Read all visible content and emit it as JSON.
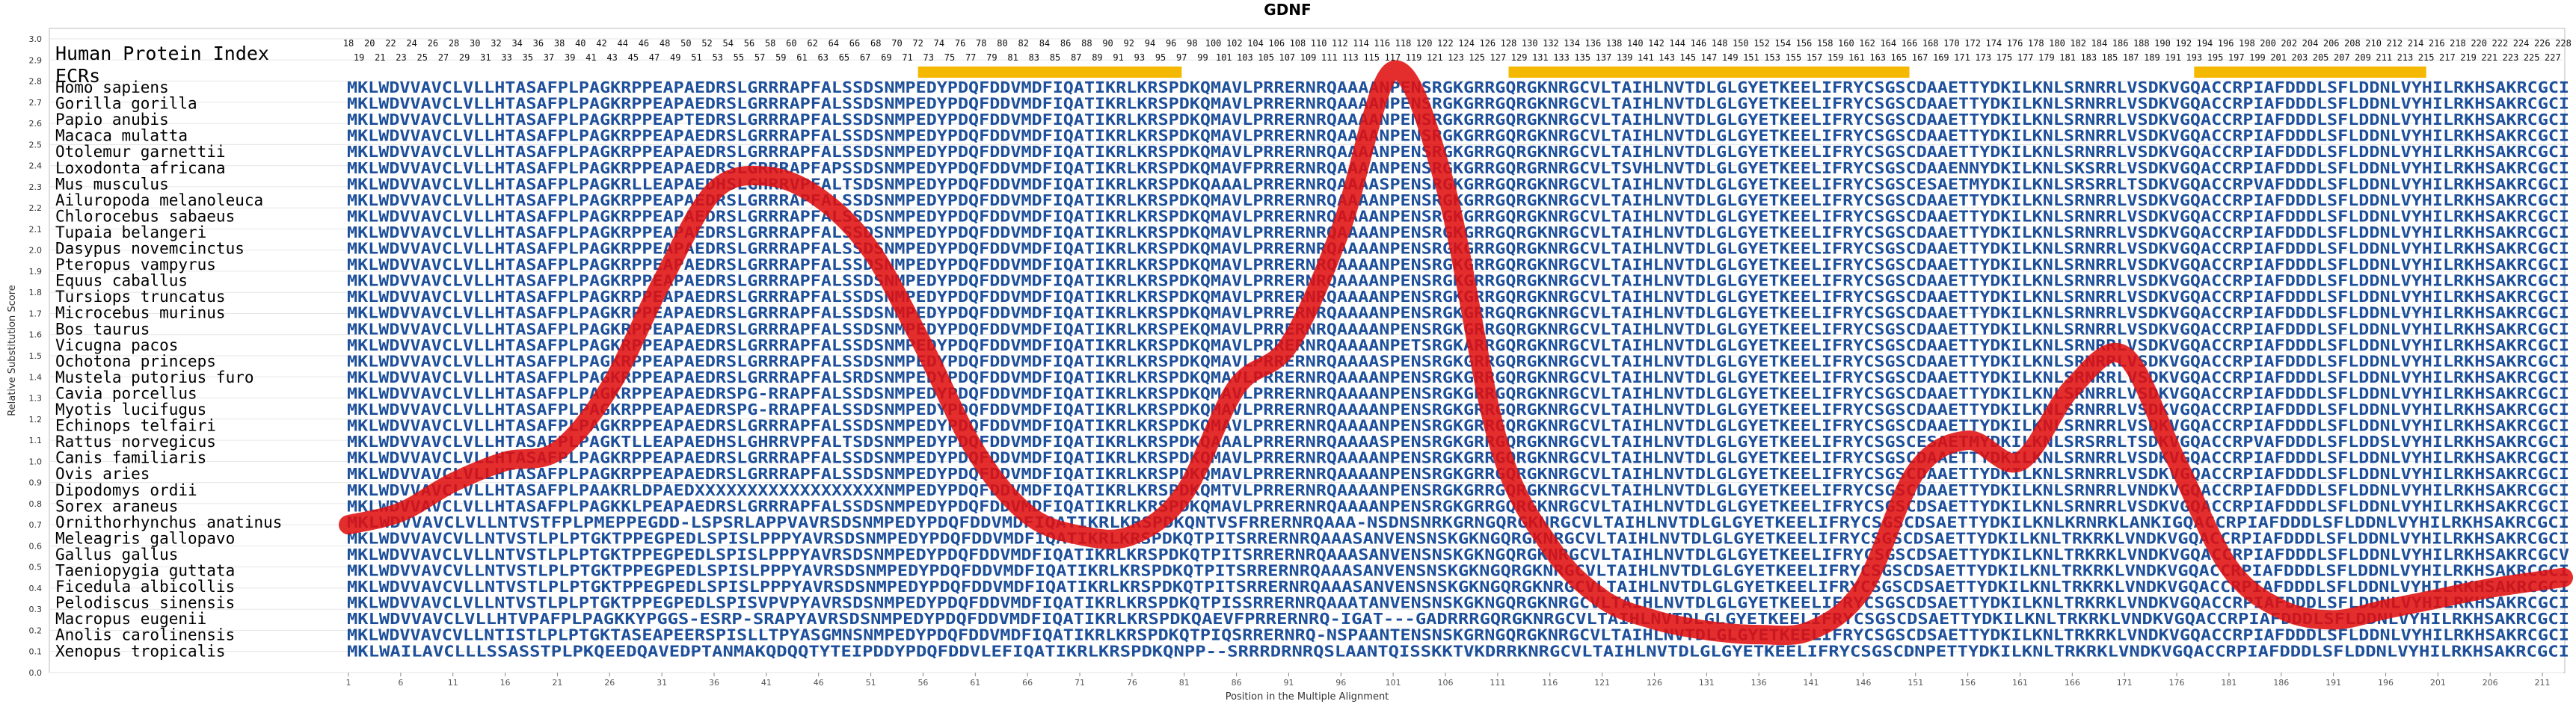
{
  "chart_data": {
    "type": "line",
    "title": "GDNF",
    "xlabel": "Position in the Multiple Alignment",
    "ylabel": "Relative Substitution Score",
    "xlim": [
      1,
      213
    ],
    "ylim": [
      0,
      3.0
    ],
    "yticks": [
      0.0,
      0.1,
      0.2,
      0.3,
      0.4,
      0.5,
      0.6,
      0.7,
      0.8,
      0.9,
      1.0,
      1.1,
      1.2,
      1.3,
      1.4,
      1.5,
      1.6,
      1.7,
      1.8,
      1.9,
      2.0,
      2.1,
      2.2,
      2.3,
      2.4,
      2.5,
      2.6,
      2.7,
      2.8,
      2.9,
      3.0
    ],
    "xticks": [
      1,
      6,
      11,
      16,
      21,
      26,
      31,
      36,
      41,
      46,
      51,
      56,
      61,
      66,
      71,
      76,
      81,
      86,
      91,
      96,
      101,
      106,
      111,
      116,
      121,
      126,
      131,
      136,
      141,
      146,
      151,
      156,
      161,
      166,
      171,
      176,
      181,
      186,
      191,
      196,
      201,
      206,
      211
    ],
    "grid": true,
    "series": [
      {
        "color": "#e01010",
        "x": [
          1,
          6,
          11,
          16,
          21,
          26,
          31,
          36,
          41,
          46,
          51,
          56,
          61,
          66,
          71,
          76,
          81,
          86,
          91,
          96,
          101,
          106,
          111,
          116,
          121,
          126,
          131,
          136,
          141,
          146,
          151,
          156,
          161,
          166,
          171,
          176,
          181,
          186,
          191,
          196,
          201,
          206,
          213
        ],
        "y": [
          0.7,
          0.76,
          0.9,
          1.0,
          1.05,
          1.35,
          1.85,
          2.28,
          2.35,
          2.25,
          2.0,
          1.55,
          1.05,
          0.75,
          0.65,
          0.65,
          0.85,
          1.35,
          1.55,
          2.1,
          2.85,
          2.3,
          1.1,
          0.6,
          0.35,
          0.25,
          0.2,
          0.18,
          0.2,
          0.4,
          0.95,
          1.1,
          1.0,
          1.35,
          1.5,
          1.0,
          0.5,
          0.3,
          0.25,
          0.3,
          0.35,
          0.4,
          0.45
        ]
      }
    ],
    "human_index_row1": [
      "18",
      "20",
      "22",
      "24",
      "26",
      "28",
      "30",
      "32",
      "34",
      "36",
      "38",
      "40",
      "42",
      "44",
      "46",
      "48",
      "50",
      "52",
      "54",
      "56",
      "58",
      "60",
      "62",
      "64",
      "66",
      "68",
      "70",
      "72",
      "74",
      "76",
      "78",
      "80",
      "82",
      "84",
      "86",
      "88",
      "90",
      "92",
      "94",
      "96",
      "98",
      "100",
      "102",
      "104",
      "106",
      "108",
      "110",
      "112",
      "114",
      "116",
      "118",
      "120",
      "122",
      "124",
      "126",
      "128",
      "130",
      "132",
      "134",
      "136",
      "138",
      "140",
      "142",
      "144",
      "146",
      "148",
      "150",
      "152",
      "154",
      "156",
      "158",
      "160",
      "162",
      "164",
      "166",
      "168",
      "170",
      "172",
      "174",
      "176",
      "178",
      "180",
      "182",
      "184",
      "186",
      "188",
      "190",
      "192",
      "194",
      "196",
      "198",
      "200",
      "202",
      "204",
      "206",
      "208",
      "210",
      "212",
      "214",
      "216",
      "218",
      "220",
      "222",
      "224",
      "226",
      "228"
    ],
    "human_index_row2": [
      "19",
      "21",
      "23",
      "25",
      "27",
      "29",
      "31",
      "33",
      "35",
      "37",
      "39",
      "41",
      "43",
      "45",
      "47",
      "49",
      "51",
      "53",
      "55",
      "57",
      "59",
      "61",
      "63",
      "65",
      "67",
      "69",
      "71",
      "73",
      "75",
      "77",
      "79",
      "81",
      "83",
      "85",
      "87",
      "89",
      "91",
      "93",
      "95",
      "97",
      "99",
      "101",
      "103",
      "105",
      "107",
      "109",
      "111",
      "113",
      "115",
      "117",
      "119",
      "121",
      "123",
      "125",
      "127",
      "129",
      "131",
      "133",
      "135",
      "137",
      "139",
      "141",
      "143",
      "145",
      "147",
      "149",
      "151",
      "153",
      "155",
      "157",
      "159",
      "161",
      "163",
      "165",
      "167",
      "169",
      "171",
      "173",
      "175",
      "177",
      "179",
      "181",
      "183",
      "185",
      "187",
      "189",
      "191",
      "193",
      "195",
      "197",
      "199",
      "201",
      "203",
      "205",
      "207",
      "209",
      "211",
      "213",
      "215",
      "217",
      "219",
      "221",
      "223",
      "225",
      "227"
    ],
    "ecr_blocks": [
      [
        72,
        97
      ],
      [
        128,
        166
      ],
      [
        193,
        215
      ]
    ],
    "row_headers": [
      "Human Protein Index",
      "ECRs"
    ],
    "species": [
      "Homo sapiens",
      "Gorilla gorilla",
      "Papio anubis",
      "Macaca mulatta",
      "Otolemur garnettii",
      "Loxodonta africana",
      "Mus musculus",
      "Ailuropoda melanoleuca",
      "Chlorocebus sabaeus",
      "Tupaia belangeri",
      "Dasypus novemcinctus",
      "Pteropus vampyrus",
      "Equus caballus",
      "Tursiops truncatus",
      "Microcebus murinus",
      "Bos taurus",
      "Vicugna pacos",
      "Ochotona princeps",
      "Mustela putorius furo",
      "Cavia porcellus",
      "Myotis lucifugus",
      "Echinops telfairi",
      "Rattus norvegicus",
      "Canis familiaris",
      "Ovis aries",
      "Dipodomys ordii",
      "Sorex araneus",
      "Ornithorhynchus anatinus",
      "Meleagris gallopavo",
      "Gallus gallus",
      "Taeniopygia guttata",
      "Ficedula albicollis",
      "Pelodiscus sinensis",
      "Macropus eugenii",
      "Anolis carolinensis",
      "Xenopus tropicalis"
    ],
    "sequences": [
      "MKLWDVVAVCLVLLHTASAFPLPAGKRPPEAPAEDRSLGRRRAPFALSSDSNMPEDYPDQFDDVMDFIQATIKRLKRSPDKQMAVLPRRERNRQAAAANPENSRGKGRRGQRGKNRGCVLTAIHLNVTDLGLGYETKEELIFRYCSGSCDAAETTYDKILKNLSRNRRLVSDKVGQACCRPIAFDDDLSFLDDNLVYHILRKHSAKRCGCI",
      "MKLWDVVAVCLVLLHTASAFPLPAGKRPPEAPAEDRSLGRRRAPFALSSDSNMPEDYPDQFDDVMDFIQATIKRLKRSPDKQMAVLPRRERNRQAAAANPENSRGKGRRGQRGKNRGCVLTAIHLNVTDLGLGYETKEELIFRYCSGSCDAAETTYDKILKNLSRNRRLVSDKVGQACCRPIAFDDDLSFLDDNLVYHILRKHSAKRCGCI",
      "MKLWDVVAVCLVLLHTASAFPLPAGKRPPEAPTEDRSLGRRRAPFALSSDSNMPEDYPDQFDDVMDFIQATIKRLKRSPDKQMAVLPRRERNRQAAAANPENSRGKGRRGQRGKNRGCVLTAIHLNVTDLGLGYETKEELIFRYCSGSCDAAETTYDKILKNLSRNRRLVSDKVGQACCRPIAFDDDLSFLDDNLVYHILRKHSAKRCGCI",
      "MKLWDVVAVCLVLLHTASAFPLPAGKRPPEAPAEDRSLGRRRAPFALSSDSNMPEDYPDQFDDVMDFIQATIKRLKRSPDKQMAVLPRRERNRQAAAANPENSRGKGRRGQRGKNRGCVLTAIHLNVTDLGLGYETKEELIFRYCSGSCDAAETTYDKILKNLSRNRRLVSDKVGQACCRPIAFDDDLSFLDDNLVYHILRKHSAKRCGCI",
      "MKLWDVVAVCLVLLHTASAFPLPAGKRPPEAPAEDRSLGRRRAPFALSSDSNMPEDYPDQFDDVMDFIQATIKRLKRSPDKQMAVLPRRERNRQAAAANPENSRGKGRRGQRGKNRGCVLTAIHLNVTDLGLGYETKEELIFRYCSGSCDAAETTYDKILKNLSRNRRLVSDKVGQACCRPIAFDDDLSFLDDNLVYHILRKHSAKRCGCI",
      "MKLWDVVAVCLVLLHTASAFPLPAGKRPPEAPAEDRSLGRRRAPFAPSSDSNMPEDYPDQFDDVMDFIQATIKRLKRSPDKQMAVFPRRERNRQAAAANPENSRGKGRRGQRGRNRGCVLTSVHLNVTDLGLGYETKEELIFRYCSGSCDAAENNYDKILKNLSKSRRLVSDKVGQACCRPIAFDDDLSFLDDNLVYHILRKHSAKRCGCI",
      "MKLWDVVAVCLVLLHTASAFPLPAGKRLLEAPAEDHSLGHRRVPFALTSDSNMPEDYPDQFDDVMDFIQATIKRLKRSPDKQAAALPRRERNRQAAAASPENSRGKGRRGQRGKNRGCVLTAIHLNVTDLGLGYETKEELIFRYCSGSCESAETMYDKILKNLSRSRRLTSDKVGQACCRPVAFDDDLSFLDDNLVYHILRKHSAKRCGCI",
      "MKLWDVVAVCLVLLHTASAFPLPAGKRPPEAPAEDRSLGRRRAPFALSSDSNMPEDYPDQFDDVMDFIQATIKRLKRSPDKQMAVLPRRERNRQAAAANPENSRGKGRRGQRGKNRGCVLTAIHLNVTDLGLGYETKEELIFRYCSGSCDAAETTYDKILKNLSRNRRLVSDKVGQACCRPIAFDDDLSFLDDNLVYHILRKHSAKRCGCI",
      "MKLWDVVAVCLVLLHTASAFPLPAGKRPPEAPAEDRSLGRRRAPFALSSDSNMPEDYPDQFDDVMDFIQATIKRLKRSPDKQMAVLPRRERNRQAAAANPENSRGKGRRGQRGKNRGCVLTAIHLNVTDLGLGYETKEELIFRYCSGSCDAAETTYDKILKNLSRNRRLVSDKVGQACCRPIAFDDDLSFLDDNLVYHILRKHSAKRCGCI",
      "MKLWDVVAVCLVLLHTASAFPLPAGKRPPEAPAEDRSLGRRRAPFALSSDSNMPEDYPDQFDDVMDFIQATIKRLKRSPDKQMAVLPRRERNRQAAAANPENSRGKGRRGQRGKNRGCVLTAIHLNVTDLGLGYETKEELIFRYCSGSCDAAETTYDKILKNLSRNRRLVSDKVGQACCRPIAFDDDLSFLDDNLVYHILRKHSAKRCGCI",
      "MKLWDVVAVCLVLLHTASAFPLPAGKRPPEAPAEDRSLGRRRAPFALSSDSNMPEDYPDQFDDVMDFIQATIKRLKRSPDKQMAVLPRRERNRQAAAANPENSRGKGRRGQRGKNRGCVLTAIHLNVTDLGLGYETKEELIFRYCSGSCDAAETTYDKILKNLSRNRRLVSDKVGQACCRPIAFDDDLSFLDDNLVYHILRKHSAKRCGCI",
      "MKLWDVVAVCLVLLHTASAFPLPAGKRPPEAPAEDRSLGRRRAPFALSSDSNMPEDYPDQFDDVMDFIQATIKRLKRSPDKQMAVLPRRERNRQAAAANPENSRGKGRRGQRGKNRGCVLTAIHLNVTDLGLGYETKEELIFRYCSGSCDAAETTYDKILKNLSRNRRLVSDKVGQACCRPIAFDDDLSFLDDNLVYHILRKHSAKRCGCI",
      "MKLWDVVAVCLVLLHTASAFPLPAGKRPPEAPAEDRSLGRRRAPFALSSDSNMPEDYPDQFDDVMDFIQATIKRLKRSPDKQMAVLPRRERNRQAAAANPENSRGKGRRGQRGKNRGCVLTAIHLNVTDLGLGYETKEELIFRYCSGSCDAAETTYDKILKNLSRNRRLVSDKVGQACCRPIAFDDDLSFLDDNLVYHILRKHSAKRCGCI",
      "MKLWDVVAVCLVLLHTASAFPLPAGKRPPEAPAEDRSLGRRRAPFALSSDSNMPEDYPDQFDDVMDFIQATIKRLKRSPDKQMAVLPRRERNRQAAAANPENSRGKGRRGQRGKNRGCVLTAIHLNVTDLGLGYETKEELIFRYCSGSCDAAETTYDKILKNLSRNRRLVSDKVGQACCRPIAFDDDLSFLDDNLVYHILRKHSAKRCGCI",
      "MKLWDVVAVCLVLLHTASAFPLPAGKRPPEAPAEDRSLGRRRAPFALSSDSNMPEDYPDQFDDVMDFIQATIKRLKRSPDKQMAVLPRRERNRQAAAANPENSRGKGRRGQRGKNRGCVLTAIHLNVTDLGLGYETKEELIFRYCSGSCDAAETTYDKILKNLSRNRRLVSDKVGQACCRPIAFDDDLSFLDDNLVYHILRKHSAKRCGCI",
      "MKLWDVVAVCLVLLHTASAFPLPAGKRPPEAPAEDRSLGRRRAPFALSSDSNMPEDYPDQFDDVMDFIQATIKRLKRSPEKQMAVLPRRERNRQAAAANPENSRGKGRRGQRGKNRGCVLTAIHLNVTDLGLGYETKEELIFRYCSGSCDAAETTYDKILKNLSRNRRLVSDKVGQACCRPIAFDDDLSFLDDNLVYHILRKHSAKRCGCI",
      "MKLWDVVAVCLVLLHTASAFPLPAGKRPPEAPAEDRSLGRRRAPFALSSDSNMPEDYPDQFDDVMDFIQATIKRLKRSPDKQMAVLPRRERNRQAAAANPETSRGKARRGQRGKNRGCVLTAIHLNVTDLGLGYETKEELIFRYCSGSCDAAETTYDKILKNLSRNRRLVSDKVGQACCRPIAFDDDLSFLDDNLVYHILRKHSAKRCGCI",
      "MKLWDVVAVCLVLLHTASAFPLPAGKRPPEAPAEDRSLGRRRAPFALSSDSNMPEDYPDQFDDVMDFIQATIKRLKRSPDKQMAVLPRRERNRQAAAASPENSRGKGRRGQRGKNRGCVLTAIHLNVTDLGLGYETKEELIFRYCSGSCDAAETTYDKILKNLSRNRRLVSDKVGQACCRPIAFDDDLSFLDDNLVYHILRKHSAKRCGCI",
      "MKLWDVVAVCLVLLHTASAFPLPAGKRPPEAPAEDRSLGRRRAPFALSRDSNMPEDYPDQFDDVMDFIQATIKRLKRSPDKQMAVLPRRERNRQAAAANPENSRGKGRRGQRGKNRGCVLTAIHLNVTDLGLGYETKEELIFRYCSGSCDAAETTYDKILKNLSRNRRLVSDKVGQACCRPIAFDDDLSFLDDNLVYHILRKHSAKRCGCI",
      "MKLWDVVAVCLVLLHTASAFPLPAGKRPPEAPAEDRSPG-RRAPFALSSDSNMPEDYPDQFDDVMDFIQATIKRLKRSPDKQMAVLPRRERNRQAAAANPENSRGKGRRGQRGKNRGCVLTAIHLNVTDLGLGYETKEELIFRYCSGSCDAAETTYDKILKNLSRNRRLVSDKVGQACCRPIAFDDDLSFLDDNLVYHILRKHSAKRCGCI",
      "MKLWDVVAVCLVLLHTASAFPLPAGKRPPEAPAEDRSPG-RRAPFALSSDSNMPEDYPDQFDDVMDFIQATIKRLKRSPDKQMAVLPRRERNRQAAAANPENSRGKGRRGQRGKNRGCVLTAIHLNVTDLGLGYETKEELIFRYCSGSCDAAETTYDKILKNLSRNRRLVSDKVGQACCRPIAFDDDLSFLDDNLVYHILRKHSAKRCGCI",
      "MKLWDVVAVCLVLLHTASAFPLPAGKRPPEAPAEDRSLGRRRAPFALSSDSNMPEDYPDQFDDVMDFIQATIKRLKRSPDKQMAVLPRRERNRQAAAANPENSRGKGRRGQRGKNRGCVLTAIHLNVTDLGLGYETKEELIFRYCSGSCDAAETTYDKILKNLSRNRRLVSDKVGQACCRPIAFDDDLSFLDDNLVYHILRKHSAKRCGCI",
      "MKLWDVVAVCLVLLHTASAFPLPAGKTLLEAPAEDHSLGHRRVPFALTSDSNMPEDYPDQFDDVMDFIQATIKRLKRSPDKQAAALPRRERNRQAAAASPENSRGKGRRGQRGKNRGCVLTAIHLNVTDLGLGYETKEELIFRYCSGSCESAETMYDKILKNLSRSRRLTSDKVGQACCRPVAFDDDLSFLDDSLVYHILRKHSAKRCGCI",
      "MKLWDVVAVCLVLLHTASAFPLPAGKRPPEAPAEDRSLGRRRAPFALSSDSNMPEDYPDQFDDVMDFIQATIKRLKRSPDKQMAVLPRRERNRQAAAANPENSRGKGRRGQRGKNRGCVLTAIHLNVTDLGLGYETKEELIFRYCSGSCDAAETTYDKILKNLSRNRRLVSDKVGQACCRPIAFDDDLSFLDDNLVYHILRKHSAKRCGCI",
      "MKLWDVVAVCLVLLHTASAFPLPAGKRPPEAPAEDRSLGRRRAPFALSSDSNMPEDYPDQFDDVMDFIQATIKRLKRSPDKQMAVLPRRERNRQAAAANPENSRGKGRRGQRGKNRGCVLTAIHLNVTDLGLGYETKEELIFRYCSGSCDAAETTYDKILKNLSRNRRLVSDKVGQACCRPIAFDDDLSFLDDNLVYHILRKHSAKRCGCI",
      "MKLWDVVAVCLVLLHTASAFPLPAAKRLDPAEDXXXXXXXXXXXXXXXXXXNMPEDYPDQFDDVMDFIQATIKRLKRSPDKQMTVLPRRERNRQAAAANPENSRGKGRRGQRGKNRGCVLTAIHLNVTDLGLGYETKEELIFRYCSGSCDAAETTYDKILKNLSRNRRLVNDKVGQACCRPIAFDDDLSFLDDNLVYHILRKHSAKRCGCI",
      "MKLWDVVAVCLVLLHTASAFPLPAGKKLPEAPAEDRSLGRRRAPFALSSDSNMPEDYPDQFDDVMDFIQATIKRLKRSPDKQMAVLPRRERNRQAAAANPENSRGKGRRGQRGKNRGCVLTAIHLNVTDLGLGYETKEELIFRYCSGSCDSAETTYDKILKNLSRNRRLVSDKVGQACCRPIAFDDDLSFLDDNLVYHILRKHSAKRCGCI",
      "MKLWDVVAVCLVLLNTVSTFPLPMEPPEGDD-LSPSRLAPPVAVRSDSNMPEDYPDQFDDVMDFIQATIKRLKRSPDKQNTVSFRRERNRQAAA-NSDNSNRKGRNGQRGKNRGCVLTAIHLNVTDLGLGYETKEELIFRYCSGSCDSAETTYDKILKNLKRNRKLANKIGQACCRPIAFDDDLSFLDDNLVYHILRKHSAKRCGCI",
      "MKLWDVVAVCVLLNTVSTLPLPTGKTPPEGPEDLSPISLPPPYAVRSDSNMPEDYPDQFDDVMDFIQATIKRLKRSPDKQTPITSRRERNRQAAASANVENSNSKGKNGQRGKNRGCVLTAIHLNVTDLGLGYETKEELIFRYCSGSCDSAETTYDKILKNLTRKRKLVNDKVGQACCRPIAFDDDLSFLDDNLVYHILRKHSAKRCGCI",
      "MKLWDVVAVCLVLLNTVSTLPLPTGKTPPEGPEDLSPISLPPPYAVRSDSNMPEDYPDQFDDVMDFIQATIKRLKRSPDKQTPITSRRERNRQAAASANVENSNSKGKNGQRGKNRGCVLTAIHLNVTDLGLGYETKEELIFRYCSGSCDSAETTYDKILKNLTRKRKLVNDKVGQACCRPIAFDDDLSFLDDNLVYHILRKHSAKRCGCV",
      "MKLWDVVAVCVLLNTVSTLPLPTGKTPPEGPEDLSPISLPPPYAVRSDSNMPEDYPDQFDDVMDFIQATIKRLKRSPDKQTPITSRRERNRQAAASANVENSNSKGKNGQRGKNRGCVLTAIHLNVTDLGLGYETKEELIFRYCSGSCDSAETTYDKILKNLTRKRKLVNDKVGQACCRPIAFDDDLSFLDDNLVYHILRKHSAKRCGCI",
      "MKLWDVVAVCVLLNTVSTLPLPTGKTPPEGPEDLSPISLPPPYAVRSDSNMPEDYPDQFDDVMDFIQATIKRLKRSPDKQTPITSRRERNRQAAASANVENSNSKGKNGQRGKNRGCVLTAIHLNVTDLGLGYETKEELIFRYCSGSCDSAETTYDKILKNLTRKRKLVNDKVGQACCRPIAFDDDLSFLDDNLVYHILRKHSAKRCGCI",
      "MKLWDVVAVCLVLLNTVSTLPLPTGKTPPEGPEDLSPISVPVPYAVRSDSNMPEDYPDQFDDVMDFIQATIKRLKRSPDKQTPISSRRERNRQAAATANVENSNSKGKNGQRGKNRGCVLTAIHLNVTDLGLGYETKEELIFRYCSGSCDSAETTYDKILKNLTRKRKLVNDKVGQACCRPIAFDDDLSFLDDNLVYHILRKHSAKRCGCI",
      "MKLWDVVAVCLVLLHTVPAFPLPAGKKYPGGS-ESRP-SRAPYAVRSDSNMPEDYPDQFDDVMDFIQATIKRLKRSPDKQAEVFPRRERNRQ-IGAT---GADRRRGQRGKNRGCVLTAIHLNVTDLGLGYETKEELIFRYCSGSCDSAETTYDKILKNLTRKRKLVNDKVGQACCRPIAFDDDLSFLDDNLVYHILRKHSAKRCGCI",
      "MKLWDVVAVCVLLNTISTLPLPTGKTASEAPEERSPISLLTPYASGMNSNMPEDYPDQFDDVMDFIQATIKRLKRSPDKQTPIQSRRERNRQ-NSPAANTENSNSKGRNGQRGKNRGCVLTAIHLNVTDLGLGYETKEELIFRYCSGSCDSAETTYDKILKNLTRKRKLVNDKVGQACCRPIAFDDDLSFLDDNLVYHILRKHSAKRCGCI",
      "MKLWAILAVCLLLSSASSTPLPKQEEDQAVEDPTANMAKQDQQTYTEIPDDYPDQFDDVLEFIQATIKRLKRSPDKQNPP--SRRRDRNRQSLAANTQISSKKTVKDRRKNRGCVLTAIHLNVTDLGLGYETKEELIFRYCSGSCDNPETTYDKILKNLTRKRKLVNDKVGQACCRPIAFDDDLSFLDDNLVYHILRKHSAKRCGCI"
    ]
  }
}
